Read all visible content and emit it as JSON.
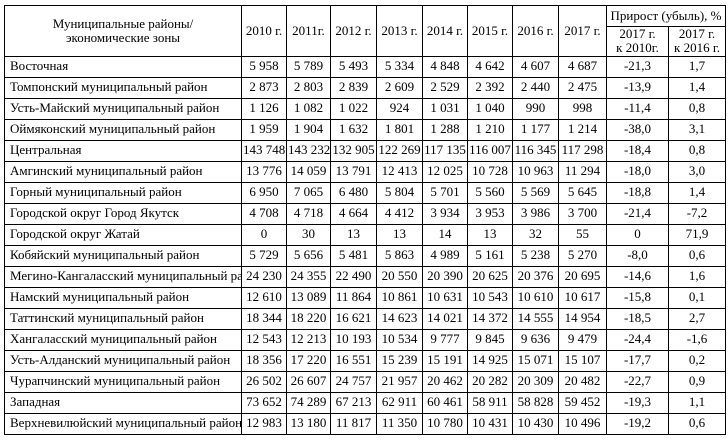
{
  "table": {
    "header": {
      "col0_line1": "Муниципальные районы/",
      "col0_line2": "экономические зоны",
      "years": [
        "2010 г.",
        "2011г.",
        "2012 г.",
        "2013 г.",
        "2014 г.",
        "2015 г.",
        "2016 г.",
        "2017 г."
      ],
      "growth_group": "Прирост (убыль), %",
      "growth_sub": [
        {
          "line1": "2017 г.",
          "line2": "к 2010г."
        },
        {
          "line1": "2017 г.",
          "line2": "к 2016 г."
        }
      ]
    },
    "rows": [
      {
        "name": "Восточная",
        "values": [
          "5 958",
          "5 789",
          "5 493",
          "5 334",
          "4 848",
          "4 642",
          "4 607",
          "4 687"
        ],
        "growth": [
          "-21,3",
          "1,7"
        ]
      },
      {
        "name": "Томпонский муниципальный район",
        "values": [
          "2 873",
          "2 803",
          "2 839",
          "2 609",
          "2 529",
          "2 392",
          "2 440",
          "2 475"
        ],
        "growth": [
          "-13,9",
          "1,4"
        ]
      },
      {
        "name": "Усть-Майский муниципальный район",
        "values": [
          "1 126",
          "1 082",
          "1 022",
          "924",
          "1 031",
          "1 040",
          "990",
          "998"
        ],
        "growth": [
          "-11,4",
          "0,8"
        ]
      },
      {
        "name": "Оймяконский муниципальный район",
        "values": [
          "1 959",
          "1 904",
          "1 632",
          "1 801",
          "1 288",
          "1 210",
          "1 177",
          "1 214"
        ],
        "growth": [
          "-38,0",
          "3,1"
        ]
      },
      {
        "name": "Центральная",
        "values": [
          "143 748",
          "143 232",
          "132 905",
          "122 269",
          "117 135",
          "116 007",
          "116 345",
          "117 298"
        ],
        "growth": [
          "-18,4",
          "0,8"
        ]
      },
      {
        "name": "Амгинский муниципальный район",
        "values": [
          "13 776",
          "14 059",
          "13 791",
          "12 413",
          "12 025",
          "10 728",
          "10 963",
          "11 294"
        ],
        "growth": [
          "-18,0",
          "3,0"
        ]
      },
      {
        "name": "Горный муниципальный район",
        "values": [
          "6 950",
          "7 065",
          "6 480",
          "5 804",
          "5 701",
          "5 560",
          "5 569",
          "5 645"
        ],
        "growth": [
          "-18,8",
          "1,4"
        ]
      },
      {
        "name": "Городской округ Город Якутск",
        "values": [
          "4 708",
          "4 718",
          "4 664",
          "4 412",
          "3 934",
          "3 953",
          "3 986",
          "3 700"
        ],
        "growth": [
          "-21,4",
          "-7,2"
        ]
      },
      {
        "name": "Городской округ Жатай",
        "values": [
          "0",
          "30",
          "13",
          "13",
          "14",
          "13",
          "32",
          "55"
        ],
        "growth": [
          "0",
          "71,9"
        ]
      },
      {
        "name": "Кобяйский муниципальный район",
        "values": [
          "5 729",
          "5 656",
          "5 481",
          "5 863",
          "4 989",
          "5 161",
          "5 238",
          "5 270"
        ],
        "growth": [
          "-8,0",
          "0,6"
        ]
      },
      {
        "name": "Мегино-Кангаласский муниципальный район",
        "values": [
          "24 230",
          "24 355",
          "22 490",
          "20 550",
          "20 390",
          "20 625",
          "20 376",
          "20 695"
        ],
        "growth": [
          "-14,6",
          "1,6"
        ]
      },
      {
        "name": "Намский муниципальный район",
        "values": [
          "12 610",
          "13 089",
          "11 864",
          "10 861",
          "10 631",
          "10 543",
          "10 610",
          "10 617"
        ],
        "growth": [
          "-15,8",
          "0,1"
        ]
      },
      {
        "name": "Таттинский муниципальный район",
        "values": [
          "18 344",
          "18 220",
          "16 621",
          "14 623",
          "14 021",
          "14 372",
          "14 555",
          "14 954"
        ],
        "growth": [
          "-18,5",
          "2,7"
        ]
      },
      {
        "name": "Хангаласский муниципальный район",
        "values": [
          "12 543",
          "12 213",
          "10 193",
          "10 534",
          "9 777",
          "9 845",
          "9 636",
          "9 479"
        ],
        "growth": [
          "-24,4",
          "-1,6"
        ]
      },
      {
        "name": "Усть-Алданский муниципальный район",
        "values": [
          "18 356",
          "17 220",
          "16 551",
          "15 239",
          "15 191",
          "14 925",
          "15 071",
          "15 107"
        ],
        "growth": [
          "-17,7",
          "0,2"
        ]
      },
      {
        "name": "Чурапчинский муниципальный район",
        "values": [
          "26 502",
          "26 607",
          "24 757",
          "21 957",
          "20 462",
          "20 282",
          "20 309",
          "20 482"
        ],
        "growth": [
          "-22,7",
          "0,9"
        ]
      },
      {
        "name": "Западная",
        "values": [
          "73 652",
          "74 289",
          "67 213",
          "62 911",
          "60 461",
          "58 911",
          "58 828",
          "59 452"
        ],
        "growth": [
          "-19,3",
          "1,1"
        ]
      },
      {
        "name": "Верхневилюйский муниципальный район",
        "values": [
          "12 983",
          "13 180",
          "11 817",
          "11 350",
          "10 780",
          "10 431",
          "10 430",
          "10 496"
        ],
        "growth": [
          "-19,2",
          "0,6"
        ]
      }
    ]
  }
}
